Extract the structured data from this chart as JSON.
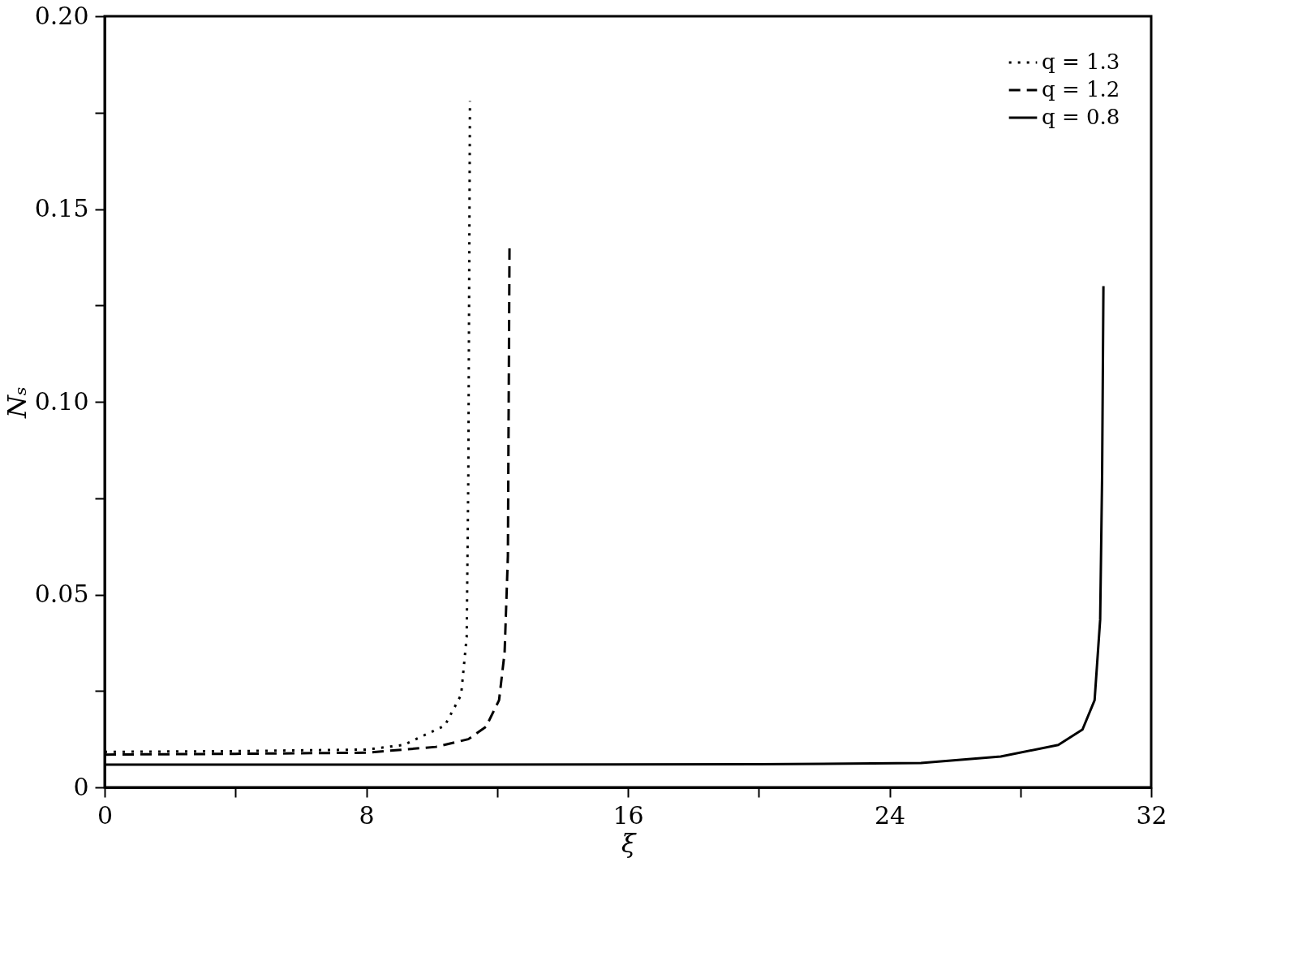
{
  "chart_data": {
    "type": "line",
    "xlabel": "ξ",
    "ylabel": "Nₛ",
    "xlim": [
      0,
      32
    ],
    "ylim": [
      0,
      0.2
    ],
    "xticks": [
      0,
      {
        "value": 4,
        "label": null
      },
      8,
      {
        "value": 12,
        "label": null
      },
      16,
      {
        "value": 20,
        "label": null
      },
      24,
      {
        "value": 28,
        "label": null
      },
      32
    ],
    "yticks": [
      {
        "value": 0,
        "label": "0"
      },
      {
        "value": 0.025,
        "label": null
      },
      0.05,
      {
        "value": 0.075,
        "label": null
      },
      {
        "value": 0.1,
        "label": "0.10"
      },
      {
        "value": 0.125,
        "label": null
      },
      0.15,
      {
        "value": 0.175,
        "label": null
      },
      {
        "value": 0.2,
        "label": "0.20"
      }
    ],
    "legend": "top right",
    "grid": false,
    "series": [
      {
        "name": "q = 1.3",
        "color": "#000000",
        "line_style": "dotted",
        "x": [
          0,
          4,
          8,
          9.14,
          10.4,
          10.9,
          11.07,
          11.12,
          11.17
        ],
        "values": [
          0.0092,
          0.0094,
          0.0098,
          0.011,
          0.016,
          0.024,
          0.039,
          0.081,
          0.178
        ]
      },
      {
        "name": "q = 1.2",
        "color": "#000000",
        "line_style": "dashed",
        "x": [
          0,
          4,
          8,
          10.13,
          11.12,
          11.66,
          12.06,
          12.23,
          12.33,
          12.38
        ],
        "values": [
          0.0085,
          0.0087,
          0.009,
          0.0105,
          0.0125,
          0.0157,
          0.0226,
          0.035,
          0.06,
          0.141
        ]
      },
      {
        "name": "q = 0.8",
        "color": "#000000",
        "line_style": "solid",
        "x": [
          0,
          10,
          20,
          24.96,
          27.4,
          29.16,
          29.9,
          30.27,
          30.44,
          30.5,
          30.54
        ],
        "values": [
          0.0059,
          0.0059,
          0.006,
          0.0063,
          0.008,
          0.011,
          0.015,
          0.0226,
          0.0435,
          0.081,
          0.13
        ]
      }
    ]
  }
}
